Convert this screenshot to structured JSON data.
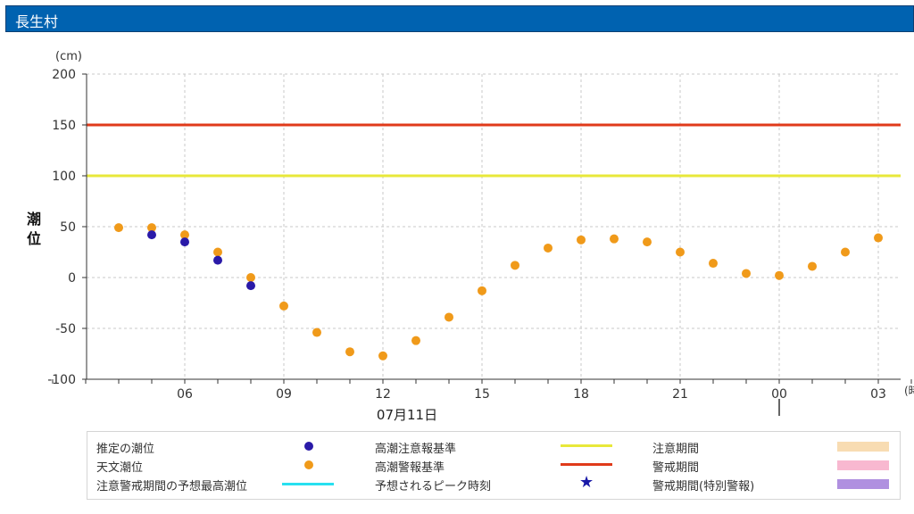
{
  "header": {
    "title": "長生村"
  },
  "colors": {
    "estimated": "#2a1aa8",
    "astronomical": "#f09a1a",
    "caution_line": "#e8e83a",
    "warning_line": "#e03a1a",
    "max_tide_line": "#28e0f0",
    "caution_period": "#f8dcb2",
    "warning_period": "#f8b8d0",
    "special_period": "#b090e0"
  },
  "chart_data": {
    "type": "scatter",
    "unit_label": "(cm)",
    "ylabel": "潮位",
    "date_label": "07月11日",
    "x_unit_label": "(時",
    "ylim": [
      -100,
      200
    ],
    "yticks": [
      200,
      150,
      100,
      50,
      0,
      -50,
      -100
    ],
    "x_tick_hours": [
      6,
      9,
      12,
      15,
      18,
      21,
      24,
      27
    ],
    "x_tick_labels": [
      "06",
      "09",
      "12",
      "15",
      "18",
      "21",
      "00",
      "03"
    ],
    "xlim_hours": [
      2,
      28.8
    ],
    "grid": true,
    "reference_lines": [
      {
        "name": "高潮警報基準",
        "value": 150
      },
      {
        "name": "高潮注意報基準",
        "value": 100
      }
    ],
    "series": [
      {
        "name": "推定の潮位",
        "points": [
          [
            5,
            42
          ],
          [
            6,
            35
          ],
          [
            7,
            17
          ],
          [
            8,
            -8
          ]
        ]
      },
      {
        "name": "天文潮位",
        "points": [
          [
            4,
            49
          ],
          [
            5,
            49
          ],
          [
            6,
            42
          ],
          [
            7,
            25
          ],
          [
            8,
            0
          ],
          [
            9,
            -28
          ],
          [
            10,
            -54
          ],
          [
            11,
            -73
          ],
          [
            12,
            -77
          ],
          [
            13,
            -62
          ],
          [
            14,
            -39
          ],
          [
            15,
            -13
          ],
          [
            16,
            12
          ],
          [
            17,
            29
          ],
          [
            18,
            37
          ],
          [
            19,
            38
          ],
          [
            20,
            35
          ],
          [
            21,
            25
          ],
          [
            22,
            14
          ],
          [
            23,
            4
          ],
          [
            24,
            2
          ],
          [
            25,
            11
          ],
          [
            26,
            25
          ],
          [
            27,
            39
          ]
        ]
      }
    ]
  },
  "legend": {
    "estimated": "推定の潮位",
    "astronomical": "天文潮位",
    "max_tide": "注意警戒期間の予想最高潮位",
    "caution_std": "高潮注意報基準",
    "warning_std": "高潮警報基準",
    "peak_time": "予想されるピーク時刻",
    "caution_period": "注意期間",
    "warning_period": "警戒期間",
    "special_period": "警戒期間(特別警報)"
  }
}
